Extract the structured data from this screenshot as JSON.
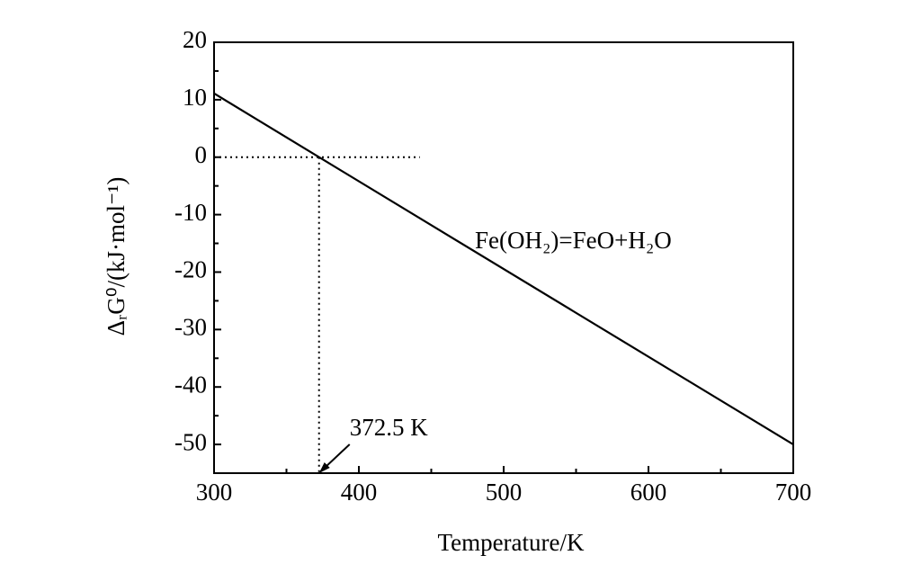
{
  "chart_data": {
    "type": "line",
    "x_label": "Temperature/K",
    "y_label": "ΔᵣG⁰/(kJ·mol⁻¹)",
    "x": [
      300,
      372.5,
      700
    ],
    "series": [
      {
        "name": "Fe(OH₂)=FeO+H₂O",
        "color": "#000000",
        "values": [
          11.1,
          0,
          -50
        ]
      }
    ],
    "xlim": [
      300,
      700
    ],
    "xticks": [
      300,
      400,
      500,
      600,
      700
    ],
    "ylim": [
      -55,
      20
    ],
    "yticks": [
      20,
      10,
      0,
      -10,
      -20,
      -30,
      -40,
      -50
    ],
    "annotations": [
      {
        "text": "372.5 K",
        "x": 372.5,
        "y": 0
      }
    ]
  }
}
